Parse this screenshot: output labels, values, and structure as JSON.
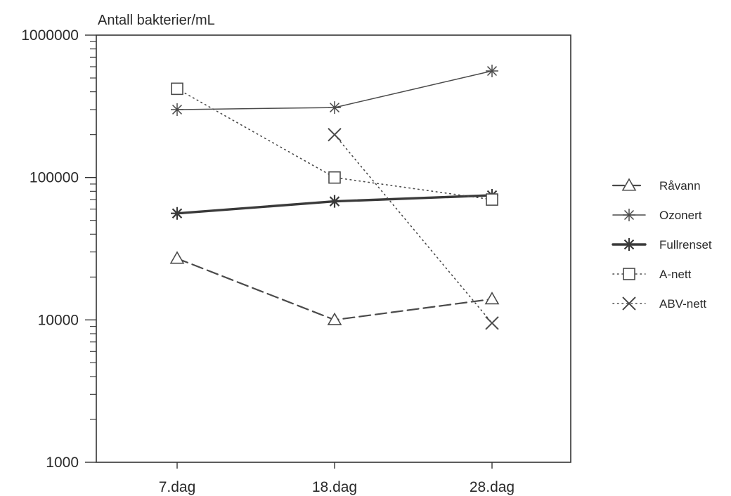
{
  "chart_data": {
    "type": "line",
    "title": "",
    "ylabel": "Antall bakterier/mL",
    "xlabel": "",
    "y_scale": "log",
    "ylim": [
      1000,
      1000000
    ],
    "yticks": [
      "1000",
      "10000",
      "100000",
      "1000000"
    ],
    "categories": [
      "7.dag",
      "18.dag",
      "28.dag"
    ],
    "grid": false,
    "legend_position": "right",
    "series": [
      {
        "name": "Råvann",
        "values": [
          27000,
          10000,
          14000
        ],
        "marker": "triangle",
        "line_style": "dashed",
        "color": "#4a4a4a"
      },
      {
        "name": "Ozonert",
        "values": [
          300000,
          310000,
          560000
        ],
        "marker": "asterisk",
        "line_style": "solid-thin",
        "color": "#4a4a4a"
      },
      {
        "name": "Fullrenset",
        "values": [
          56000,
          68000,
          75000
        ],
        "marker": "asterisk",
        "line_style": "solid-thick",
        "color": "#3a3a3a"
      },
      {
        "name": "A-nett",
        "values": [
          420000,
          100000,
          70000
        ],
        "marker": "square",
        "line_style": "dotted",
        "color": "#4a4a4a"
      },
      {
        "name": "ABV-nett",
        "values": [
          null,
          200000,
          9500
        ],
        "marker": "x",
        "line_style": "dotted",
        "color": "#4a4a4a"
      }
    ]
  }
}
